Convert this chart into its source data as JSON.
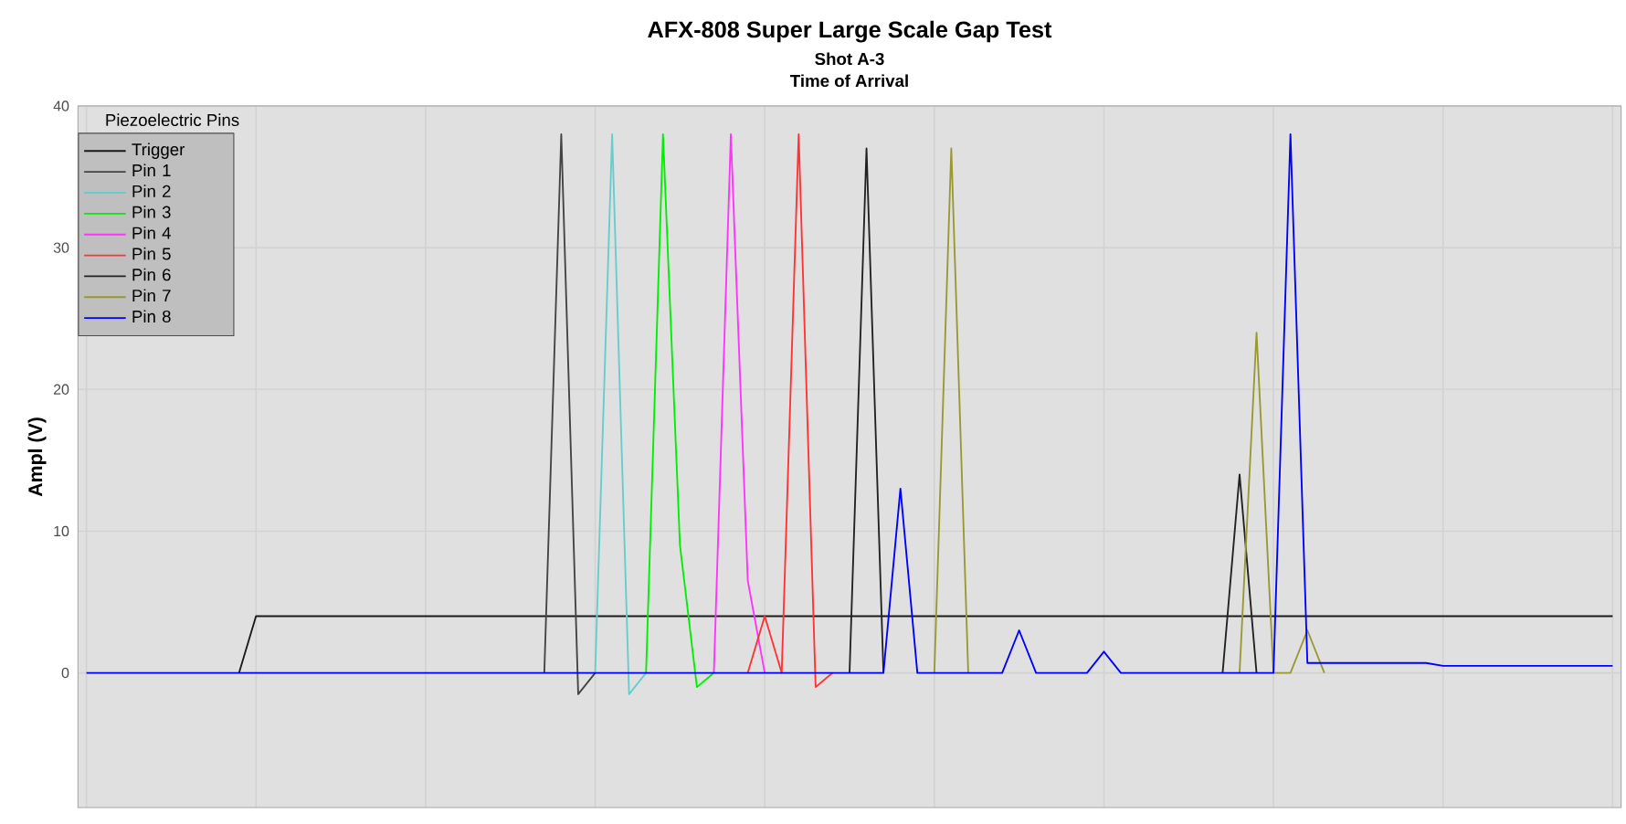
{
  "chart_data": {
    "type": "line",
    "title": "AFX-808 Super Large Scale Gap Test",
    "subtitle": "Shot A-3",
    "annotations": [
      "Time of Arrival"
    ],
    "ylabel": "Ampl (V)",
    "legend_title": "Piezoelectric Pins",
    "legend": "top left",
    "grid": true,
    "tick_labels": "y",
    "ylim": [
      -9.5,
      40
    ],
    "yticks": [
      0,
      10,
      20,
      30,
      40
    ],
    "categories": [
      null,
      null,
      null,
      null,
      null,
      null,
      null,
      null,
      null,
      null,
      null,
      null,
      null,
      null,
      null,
      null,
      null,
      null,
      null,
      null,
      null,
      null,
      null,
      null,
      null,
      null,
      null,
      null,
      null,
      null,
      null,
      null,
      null,
      null,
      null,
      null,
      null,
      null,
      null,
      null,
      null,
      null,
      null,
      null,
      null,
      null,
      null,
      null,
      null,
      null,
      null,
      null,
      null,
      null,
      null,
      null,
      null,
      null,
      null,
      null,
      null,
      null,
      null,
      null,
      null,
      null,
      null,
      null,
      null,
      null,
      null,
      null,
      null,
      null,
      null,
      null,
      null,
      null,
      null,
      null,
      null,
      null,
      null,
      null,
      null,
      null,
      null,
      null,
      null,
      null,
      null
    ],
    "series": [
      {
        "name": "Trigger",
        "color": "#1a1a1a",
        "values": [
          null,
          null,
          null,
          null,
          null,
          null,
          null,
          null,
          null,
          0,
          4,
          4,
          4,
          4,
          4,
          4,
          4,
          4,
          4,
          4,
          4,
          4,
          4,
          4,
          4,
          4,
          4,
          4,
          4,
          4,
          4,
          4,
          4,
          4,
          4,
          4,
          4,
          4,
          4,
          4,
          4,
          4,
          4,
          4,
          4,
          4,
          4,
          4,
          4,
          4,
          4,
          4,
          4,
          4,
          4,
          4,
          4,
          4,
          4,
          4,
          4,
          4,
          4,
          4,
          4,
          4,
          4,
          4,
          4,
          4,
          4,
          4,
          4,
          4,
          4,
          4,
          4,
          4,
          4,
          4,
          4,
          4,
          4,
          4,
          4,
          4,
          4,
          4,
          4,
          4,
          4
        ]
      },
      {
        "name": "Pin 1",
        "color": "#444444",
        "values": [
          null,
          null,
          null,
          null,
          null,
          null,
          null,
          null,
          null,
          null,
          null,
          null,
          null,
          null,
          null,
          null,
          null,
          null,
          null,
          null,
          null,
          null,
          null,
          null,
          null,
          null,
          null,
          0,
          38,
          -1.5,
          0,
          null,
          null,
          null,
          null,
          null,
          null,
          null,
          null,
          null,
          null,
          null,
          null,
          null,
          null,
          null,
          null,
          null,
          null,
          null,
          null,
          null,
          null,
          null,
          null,
          null,
          null,
          null,
          null,
          null,
          null,
          null,
          null,
          null,
          null,
          null,
          null,
          null,
          null,
          null,
          null,
          null,
          null,
          null,
          null,
          null,
          null,
          null,
          null,
          null,
          null,
          null,
          null,
          null,
          null,
          null,
          null,
          null,
          null,
          null,
          null
        ]
      },
      {
        "name": "Pin 2",
        "color": "#66cccc",
        "values": [
          null,
          null,
          null,
          null,
          null,
          null,
          null,
          null,
          null,
          null,
          null,
          null,
          null,
          null,
          null,
          null,
          null,
          null,
          null,
          null,
          null,
          null,
          null,
          null,
          null,
          null,
          null,
          null,
          null,
          null,
          0,
          38,
          -1.5,
          0,
          null,
          null,
          null,
          null,
          null,
          null,
          null,
          null,
          null,
          null,
          null,
          null,
          null,
          null,
          null,
          null,
          null,
          null,
          null,
          null,
          null,
          null,
          null,
          null,
          null,
          null,
          null,
          null,
          null,
          null,
          null,
          null,
          null,
          null,
          null,
          null,
          null,
          null,
          null,
          null,
          null,
          null,
          null,
          null,
          null,
          null,
          null,
          null,
          null,
          null,
          null,
          null,
          null,
          null,
          null,
          null,
          null
        ]
      },
      {
        "name": "Pin 3",
        "color": "#00ee00",
        "values": [
          null,
          null,
          null,
          null,
          null,
          null,
          null,
          null,
          null,
          null,
          null,
          null,
          null,
          null,
          null,
          null,
          null,
          null,
          null,
          null,
          null,
          null,
          null,
          null,
          null,
          null,
          null,
          null,
          null,
          null,
          null,
          null,
          null,
          0,
          38,
          9,
          -1,
          0,
          null,
          null,
          null,
          null,
          null,
          null,
          null,
          null,
          null,
          null,
          null,
          null,
          null,
          null,
          null,
          null,
          null,
          null,
          null,
          null,
          null,
          null,
          null,
          null,
          null,
          null,
          null,
          null,
          null,
          null,
          null,
          null,
          null,
          null,
          null,
          null,
          null,
          null,
          null,
          null,
          null,
          null,
          null,
          null,
          null,
          null,
          null,
          null,
          null,
          null,
          null,
          null,
          null
        ]
      },
      {
        "name": "Pin 4",
        "color": "#ff33ff",
        "values": [
          null,
          null,
          null,
          null,
          null,
          null,
          null,
          null,
          null,
          null,
          null,
          null,
          null,
          null,
          null,
          null,
          null,
          null,
          null,
          null,
          null,
          null,
          null,
          null,
          null,
          null,
          null,
          null,
          null,
          null,
          null,
          null,
          null,
          null,
          null,
          null,
          null,
          0,
          38,
          6.5,
          0,
          null,
          null,
          null,
          null,
          null,
          null,
          null,
          null,
          null,
          null,
          null,
          null,
          null,
          null,
          null,
          null,
          null,
          null,
          null,
          null,
          null,
          null,
          null,
          null,
          null,
          null,
          null,
          null,
          null,
          null,
          null,
          null,
          null,
          null,
          null,
          null,
          null,
          null,
          null,
          null,
          null,
          null,
          null,
          null,
          null,
          null,
          null,
          null,
          null,
          null
        ]
      },
      {
        "name": "Pin 5",
        "color": "#ff3333",
        "values": [
          null,
          null,
          null,
          null,
          null,
          null,
          null,
          null,
          null,
          null,
          null,
          null,
          null,
          null,
          null,
          null,
          null,
          null,
          null,
          null,
          null,
          null,
          null,
          null,
          null,
          null,
          null,
          null,
          null,
          null,
          null,
          null,
          null,
          null,
          null,
          null,
          null,
          null,
          null,
          0,
          4,
          0,
          38,
          -1,
          0,
          null,
          null,
          null,
          null,
          null,
          null,
          null,
          null,
          null,
          null,
          null,
          null,
          null,
          null,
          null,
          null,
          null,
          null,
          null,
          null,
          null,
          null,
          null,
          null,
          null,
          null,
          null,
          null,
          null,
          null,
          null,
          null,
          null,
          null,
          null,
          null,
          null,
          null,
          null,
          null,
          null,
          null,
          null,
          null,
          null,
          null
        ]
      },
      {
        "name": "Pin 6",
        "color": "#222222",
        "values": [
          null,
          null,
          null,
          null,
          null,
          null,
          null,
          null,
          null,
          null,
          null,
          null,
          null,
          null,
          null,
          null,
          null,
          null,
          null,
          null,
          null,
          null,
          null,
          null,
          null,
          null,
          null,
          null,
          null,
          null,
          null,
          null,
          null,
          null,
          null,
          null,
          null,
          null,
          null,
          null,
          null,
          null,
          null,
          null,
          null,
          0,
          37,
          0,
          null,
          null,
          null,
          null,
          null,
          null,
          null,
          null,
          null,
          null,
          null,
          null,
          null,
          null,
          null,
          null,
          null,
          null,
          null,
          0,
          14,
          0,
          null,
          null,
          null,
          null,
          null,
          null,
          null,
          null,
          null,
          null,
          null,
          null,
          null,
          null,
          null,
          null,
          null,
          null,
          null,
          null,
          null
        ]
      },
      {
        "name": "Pin 7",
        "color": "#999933",
        "values": [
          null,
          null,
          null,
          null,
          null,
          null,
          null,
          null,
          null,
          null,
          null,
          null,
          null,
          null,
          null,
          null,
          null,
          null,
          null,
          null,
          null,
          null,
          null,
          null,
          null,
          null,
          null,
          null,
          null,
          null,
          null,
          null,
          null,
          null,
          null,
          null,
          null,
          null,
          null,
          null,
          null,
          null,
          null,
          null,
          null,
          null,
          null,
          null,
          null,
          null,
          0,
          37,
          0,
          null,
          null,
          null,
          null,
          null,
          null,
          null,
          null,
          null,
          null,
          null,
          null,
          null,
          null,
          null,
          0,
          24,
          0,
          0,
          3,
          0,
          null,
          null,
          null,
          null,
          null,
          null,
          null,
          null,
          null,
          null,
          null,
          null,
          null,
          null,
          null,
          null,
          null
        ]
      },
      {
        "name": "Pin 8",
        "color": "#0000ff",
        "values": [
          0,
          0,
          0,
          0,
          0,
          0,
          0,
          0,
          0,
          0,
          0,
          0,
          0,
          0,
          0,
          0,
          0,
          0,
          0,
          0,
          0,
          0,
          0,
          0,
          0,
          0,
          0,
          0,
          0,
          0,
          0,
          0,
          0,
          0,
          0,
          0,
          0,
          0,
          0,
          0,
          0,
          0,
          0,
          0,
          0,
          0,
          0,
          0,
          13,
          0,
          0,
          0,
          0,
          0,
          0,
          3,
          0,
          0,
          0,
          0,
          1.5,
          0,
          0,
          0,
          0,
          0,
          0,
          0,
          0,
          0,
          0,
          38,
          0.7,
          0.7,
          0.7,
          0.7,
          0.7,
          0.7,
          0.7,
          0.7,
          0.5,
          0.5,
          0.5,
          0.5,
          0.5,
          0.5,
          0.5,
          0.5,
          0.5,
          0.5,
          0.5
        ]
      }
    ]
  }
}
